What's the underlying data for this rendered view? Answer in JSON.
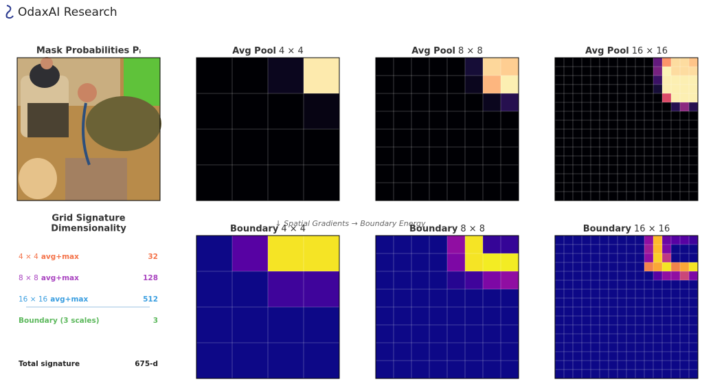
{
  "header": {
    "brand": "OdaxAI Research"
  },
  "image_panel": {
    "title": "Mask Probabilities Pᵢ"
  },
  "annotation": "↓ Spatial Gradients → Boundary Energy",
  "chart_data": [
    {
      "type": "heatmap",
      "title": "Avg Pool",
      "size_label": "4 × 4",
      "colormap": "magma",
      "vlim": [
        0,
        1
      ],
      "values": [
        [
          0,
          0,
          0.05,
          0.96
        ],
        [
          0,
          0,
          0,
          0.03
        ],
        [
          0,
          0,
          0,
          0
        ],
        [
          0,
          0,
          0,
          0
        ]
      ]
    },
    {
      "type": "heatmap",
      "title": "Avg Pool",
      "size_label": "8 × 8",
      "colormap": "magma",
      "vlim": [
        0,
        1
      ],
      "values": [
        [
          0,
          0,
          0,
          0,
          0,
          0.1,
          0.92,
          0.9
        ],
        [
          0,
          0,
          0,
          0,
          0,
          0.05,
          0.85,
          0.97
        ],
        [
          0,
          0,
          0,
          0,
          0,
          0,
          0.05,
          0.15
        ],
        [
          0,
          0,
          0,
          0,
          0,
          0,
          0,
          0
        ],
        [
          0,
          0,
          0,
          0,
          0,
          0,
          0,
          0
        ],
        [
          0,
          0,
          0,
          0,
          0,
          0,
          0,
          0
        ],
        [
          0,
          0,
          0,
          0,
          0,
          0,
          0,
          0
        ],
        [
          0,
          0,
          0,
          0,
          0,
          0,
          0,
          0
        ]
      ]
    },
    {
      "type": "heatmap",
      "title": "Avg Pool",
      "size_label": "16 × 16",
      "colormap": "magma",
      "vlim": [
        0,
        1
      ],
      "values": [
        [
          0,
          0,
          0,
          0,
          0,
          0,
          0,
          0,
          0,
          0,
          0,
          0.3,
          0.78,
          0.93,
          0.93,
          0.88
        ],
        [
          0,
          0,
          0,
          0,
          0,
          0,
          0,
          0,
          0,
          0,
          0,
          0.35,
          0.98,
          0.93,
          0.93,
          0.93
        ],
        [
          0,
          0,
          0,
          0,
          0,
          0,
          0,
          0,
          0,
          0,
          0,
          0.2,
          0.97,
          0.97,
          0.97,
          0.97
        ],
        [
          0,
          0,
          0,
          0,
          0,
          0,
          0,
          0,
          0,
          0,
          0,
          0.1,
          0.97,
          0.97,
          0.97,
          0.97
        ],
        [
          0,
          0,
          0,
          0,
          0,
          0,
          0,
          0,
          0,
          0,
          0,
          0,
          0.6,
          0.97,
          0.97,
          0.97
        ],
        [
          0,
          0,
          0,
          0,
          0,
          0,
          0,
          0,
          0,
          0,
          0,
          0,
          0,
          0.15,
          0.4,
          0.15
        ],
        [
          0,
          0,
          0,
          0,
          0,
          0,
          0,
          0,
          0,
          0,
          0,
          0,
          0,
          0,
          0,
          0
        ],
        [
          0,
          0,
          0,
          0,
          0,
          0,
          0,
          0,
          0,
          0,
          0,
          0,
          0,
          0,
          0,
          0
        ],
        [
          0,
          0,
          0,
          0,
          0,
          0,
          0,
          0,
          0,
          0,
          0,
          0,
          0,
          0,
          0,
          0
        ],
        [
          0,
          0,
          0,
          0,
          0,
          0,
          0,
          0,
          0,
          0,
          0,
          0,
          0,
          0,
          0,
          0
        ],
        [
          0,
          0,
          0,
          0,
          0,
          0,
          0,
          0,
          0,
          0,
          0,
          0,
          0,
          0,
          0,
          0
        ],
        [
          0,
          0,
          0,
          0,
          0,
          0,
          0,
          0,
          0,
          0,
          0,
          0,
          0,
          0,
          0,
          0
        ],
        [
          0,
          0,
          0,
          0,
          0,
          0,
          0,
          0,
          0,
          0,
          0,
          0,
          0,
          0,
          0,
          0
        ],
        [
          0,
          0,
          0,
          0,
          0,
          0,
          0,
          0,
          0,
          0,
          0,
          0,
          0,
          0,
          0,
          0
        ],
        [
          0,
          0,
          0,
          0,
          0,
          0,
          0,
          0,
          0,
          0,
          0,
          0,
          0,
          0,
          0,
          0
        ],
        [
          0,
          0,
          0,
          0,
          0,
          0,
          0,
          0,
          0,
          0,
          0,
          0,
          0,
          0,
          0,
          0
        ]
      ]
    },
    {
      "type": "heatmap",
      "title": "Boundary",
      "size_label": "4 × 4",
      "colormap": "plasma",
      "vlim": [
        0,
        1
      ],
      "values": [
        [
          0,
          0.15,
          0.95,
          0.95
        ],
        [
          0,
          0,
          0.1,
          0.1
        ],
        [
          0,
          0,
          0,
          0
        ],
        [
          0,
          0,
          0,
          0
        ]
      ]
    },
    {
      "type": "heatmap",
      "title": "Boundary",
      "size_label": "8 × 8",
      "colormap": "plasma",
      "vlim": [
        0,
        1
      ],
      "values": [
        [
          0,
          0,
          0,
          0,
          0.3,
          0.95,
          0.08,
          0.08
        ],
        [
          0,
          0,
          0,
          0,
          0.25,
          0.95,
          0.97,
          0.97
        ],
        [
          0,
          0,
          0,
          0,
          0.05,
          0.1,
          0.25,
          0.3
        ],
        [
          0,
          0,
          0,
          0,
          0,
          0,
          0,
          0
        ],
        [
          0,
          0,
          0,
          0,
          0,
          0,
          0,
          0
        ],
        [
          0,
          0,
          0,
          0,
          0,
          0,
          0,
          0
        ],
        [
          0,
          0,
          0,
          0,
          0,
          0,
          0,
          0
        ],
        [
          0,
          0,
          0,
          0,
          0,
          0,
          0,
          0
        ]
      ]
    },
    {
      "type": "heatmap",
      "title": "Boundary",
      "size_label": "16 × 16",
      "colormap": "plasma",
      "vlim": [
        0,
        1
      ],
      "values": [
        [
          0,
          0,
          0,
          0,
          0,
          0,
          0,
          0,
          0,
          0,
          0.3,
          0.85,
          0.2,
          0.15,
          0.15,
          0.1
        ],
        [
          0,
          0,
          0,
          0,
          0,
          0,
          0,
          0,
          0,
          0,
          0.35,
          0.85,
          0.25,
          0,
          0,
          0
        ],
        [
          0,
          0,
          0,
          0,
          0,
          0,
          0,
          0,
          0,
          0,
          0.3,
          0.9,
          0.45,
          0,
          0,
          0
        ],
        [
          0,
          0,
          0,
          0,
          0,
          0,
          0,
          0,
          0,
          0,
          0.7,
          0.8,
          0.95,
          0.7,
          0.8,
          0.95
        ],
        [
          0,
          0,
          0,
          0,
          0,
          0,
          0,
          0,
          0,
          0,
          0,
          0.15,
          0.3,
          0.3,
          0.5,
          0.25
        ],
        [
          0,
          0,
          0,
          0,
          0,
          0,
          0,
          0,
          0,
          0,
          0,
          0,
          0,
          0,
          0,
          0
        ],
        [
          0,
          0,
          0,
          0,
          0,
          0,
          0,
          0,
          0,
          0,
          0,
          0,
          0,
          0,
          0,
          0
        ],
        [
          0,
          0,
          0,
          0,
          0,
          0,
          0,
          0,
          0,
          0,
          0,
          0,
          0,
          0,
          0,
          0
        ],
        [
          0,
          0,
          0,
          0,
          0,
          0,
          0,
          0,
          0,
          0,
          0,
          0,
          0,
          0,
          0,
          0
        ],
        [
          0,
          0,
          0,
          0,
          0,
          0,
          0,
          0,
          0,
          0,
          0,
          0,
          0,
          0,
          0,
          0
        ],
        [
          0,
          0,
          0,
          0,
          0,
          0,
          0,
          0,
          0,
          0,
          0,
          0,
          0,
          0,
          0,
          0
        ],
        [
          0,
          0,
          0,
          0,
          0,
          0,
          0,
          0,
          0,
          0,
          0,
          0,
          0,
          0,
          0,
          0
        ],
        [
          0,
          0,
          0,
          0,
          0,
          0,
          0,
          0,
          0,
          0,
          0,
          0,
          0,
          0,
          0,
          0
        ],
        [
          0,
          0,
          0,
          0,
          0,
          0,
          0,
          0,
          0,
          0,
          0,
          0,
          0,
          0,
          0,
          0
        ],
        [
          0,
          0,
          0,
          0,
          0,
          0,
          0,
          0,
          0,
          0,
          0,
          0,
          0,
          0,
          0,
          0
        ],
        [
          0,
          0,
          0,
          0,
          0,
          0,
          0,
          0,
          0,
          0,
          0,
          0,
          0,
          0,
          0,
          0
        ]
      ]
    }
  ],
  "signature": {
    "title": [
      "Grid Signature",
      "Dimensionality"
    ],
    "rows": [
      {
        "size": "4 × 4",
        "label": "avg+max",
        "value": 32,
        "color": "#f4734a"
      },
      {
        "size": "8 × 8",
        "label": "avg+max",
        "value": 128,
        "color": "#a944c0"
      },
      {
        "size": "16 × 16",
        "label": "avg+max",
        "value": 512,
        "color": "#3a9ee0"
      },
      {
        "label": "Boundary (3 scales)",
        "value": 3,
        "color": "#5cb85c"
      }
    ],
    "total": {
      "label": "Total signature",
      "value": "675-d"
    }
  }
}
